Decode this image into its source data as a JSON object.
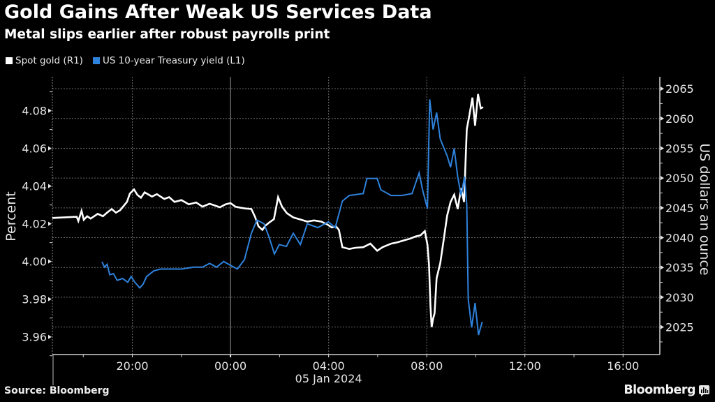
{
  "header": {
    "title": "Gold Gains After Weak US Services Data",
    "subtitle": "Metal slips earlier after robust payrolls print"
  },
  "footer": {
    "source": "Source: Bloomberg",
    "brand": "Bloomberg",
    "brand_icon": "bloomberg-chart-icon"
  },
  "colors": {
    "background": "#000000",
    "gold": "#ffffff",
    "yield": "#2e82dc",
    "grid": "#6a6a6a",
    "axis": "#cfcfcf"
  },
  "chart_data": {
    "type": "line",
    "title": "Gold Gains After Weak US Services Data",
    "subtitle": "Metal slips earlier after robust payrolls print",
    "legend": [
      {
        "name": "Spot gold (R1)",
        "color": "#ffffff"
      },
      {
        "name": "US 10-year Treasury yield (L1)",
        "color": "#2e82dc"
      }
    ],
    "legend_position": "top-left",
    "x_axis": {
      "unit": "hours relative to 05 Jan 2024 00:00",
      "range": [
        -7.26,
        17.5
      ],
      "ticks": [
        -4,
        0,
        4,
        8,
        12,
        16
      ],
      "tick_labels": [
        "20:00",
        "00:00",
        "04:00",
        "08:00",
        "12:00",
        "16:00"
      ],
      "minor_ticks": [
        -6,
        -2,
        2,
        6,
        10,
        14
      ],
      "date_label": "05 Jan 2024",
      "date_label_at": 4
    },
    "y_left": {
      "label": "Percent",
      "range": [
        3.951,
        4.098
      ],
      "ticks": [
        3.96,
        3.98,
        4.0,
        4.02,
        4.04,
        4.06,
        4.08
      ],
      "tick_labels": [
        "3.96",
        "3.98",
        "4.00",
        "4.02",
        "4.04",
        "4.06",
        "4.08"
      ]
    },
    "y_right": {
      "label": "US dollars an ounce",
      "range": [
        2020.5,
        2067
      ],
      "ticks": [
        2025,
        2030,
        2035,
        2040,
        2045,
        2050,
        2055,
        2060,
        2065
      ],
      "tick_labels": [
        "2025",
        "2030",
        "2035",
        "2040",
        "2045",
        "2050",
        "2055",
        "2060",
        "2065"
      ]
    },
    "grid": true,
    "series": [
      {
        "name": "Spot gold (R1)",
        "axis": "right",
        "color": "#ffffff",
        "x": [
          -7.26,
          -6.27,
          -6.2,
          -6.07,
          -5.98,
          -5.84,
          -5.7,
          -5.41,
          -5.2,
          -5.0,
          -4.84,
          -4.67,
          -4.5,
          -4.22,
          -4.1,
          -3.93,
          -3.8,
          -3.65,
          -3.5,
          -3.2,
          -3.0,
          -2.7,
          -2.5,
          -2.28,
          -2.0,
          -1.7,
          -1.4,
          -1.14,
          -0.85,
          -0.43,
          -0.2,
          0.0,
          0.2,
          0.43,
          0.6,
          0.85,
          1.0,
          1.14,
          1.3,
          1.42,
          1.6,
          1.77,
          1.94,
          2.1,
          2.3,
          2.56,
          2.8,
          3.13,
          3.4,
          3.7,
          3.95,
          4.13,
          4.3,
          4.42,
          4.56,
          4.84,
          5.1,
          5.41,
          5.7,
          5.98,
          6.2,
          6.55,
          6.8,
          7.12,
          7.3,
          7.55,
          7.75,
          7.92,
          8.03,
          8.09,
          8.15,
          8.2,
          8.26,
          8.32,
          8.4,
          8.55,
          8.69,
          8.83,
          8.97,
          9.12,
          9.26,
          9.4,
          9.52,
          9.63,
          9.74,
          9.86,
          9.97,
          10.09,
          10.2,
          10.3
        ],
        "values": [
          2043.3,
          2043.5,
          2042.8,
          2044.5,
          2043.0,
          2043.6,
          2043.2,
          2044.0,
          2043.6,
          2044.3,
          2044.8,
          2044.2,
          2044.6,
          2046.0,
          2047.4,
          2048.1,
          2047.2,
          2046.7,
          2047.6,
          2046.9,
          2047.3,
          2046.5,
          2046.8,
          2046.0,
          2046.3,
          2045.6,
          2045.9,
          2045.2,
          2045.7,
          2045.1,
          2045.6,
          2045.8,
          2045.2,
          2045.0,
          2044.9,
          2044.8,
          2043.5,
          2041.9,
          2041.3,
          2042.0,
          2042.6,
          2043.1,
          2046.8,
          2045.2,
          2044.1,
          2043.4,
          2043.1,
          2042.7,
          2042.9,
          2042.7,
          2042.2,
          2041.7,
          2041.9,
          2041.3,
          2038.4,
          2038.1,
          2038.3,
          2038.4,
          2039.0,
          2037.8,
          2038.4,
          2039.0,
          2039.2,
          2039.6,
          2039.8,
          2040.2,
          2040.4,
          2041.1,
          2038.8,
          2035.5,
          2028.5,
          2025.0,
          2026.4,
          2027.3,
          2033.2,
          2035.7,
          2039.6,
          2043.7,
          2046.0,
          2047.2,
          2044.8,
          2048.3,
          2046.0,
          2058.2,
          2060.6,
          2063.5,
          2058.8,
          2064.1,
          2061.7,
          2061.9
        ]
      },
      {
        "name": "US 10-year Treasury yield (L1)",
        "axis": "left",
        "color": "#2e82dc",
        "x": [
          -5.24,
          -5.13,
          -5.03,
          -4.92,
          -4.77,
          -4.62,
          -4.4,
          -4.19,
          -4.05,
          -3.9,
          -3.7,
          -3.56,
          -3.42,
          -3.13,
          -2.85,
          -2.5,
          -1.99,
          -1.5,
          -1.14,
          -0.85,
          -0.57,
          -0.28,
          0.0,
          0.28,
          0.57,
          0.85,
          1.08,
          1.37,
          1.57,
          1.79,
          1.99,
          2.28,
          2.56,
          2.85,
          3.13,
          3.56,
          3.99,
          4.27,
          4.56,
          4.84,
          5.41,
          5.56,
          5.98,
          6.13,
          6.55,
          6.98,
          7.4,
          7.69,
          7.83,
          8.03,
          8.12,
          8.26,
          8.4,
          8.55,
          8.83,
          8.97,
          9.12,
          9.26,
          9.4,
          9.54,
          9.63,
          9.69,
          9.83,
          9.97,
          10.11,
          10.26
        ],
        "values": [
          3.9998,
          3.997,
          3.9985,
          3.993,
          3.9935,
          3.99,
          3.991,
          3.989,
          3.992,
          3.989,
          3.986,
          3.988,
          3.992,
          3.995,
          3.996,
          3.996,
          3.996,
          3.997,
          3.997,
          3.999,
          3.997,
          4.0,
          3.998,
          3.996,
          4.001,
          4.015,
          4.022,
          4.02,
          4.013,
          4.004,
          4.009,
          4.008,
          4.015,
          4.009,
          4.02,
          4.018,
          4.021,
          4.018,
          4.032,
          4.035,
          4.036,
          4.044,
          4.044,
          4.038,
          4.035,
          4.035,
          4.036,
          4.047,
          4.038,
          4.028,
          4.086,
          4.07,
          4.079,
          4.065,
          4.056,
          4.05,
          4.06,
          4.045,
          4.035,
          4.045,
          4.03,
          3.98,
          3.965,
          3.978,
          3.961,
          3.968
        ]
      }
    ]
  }
}
